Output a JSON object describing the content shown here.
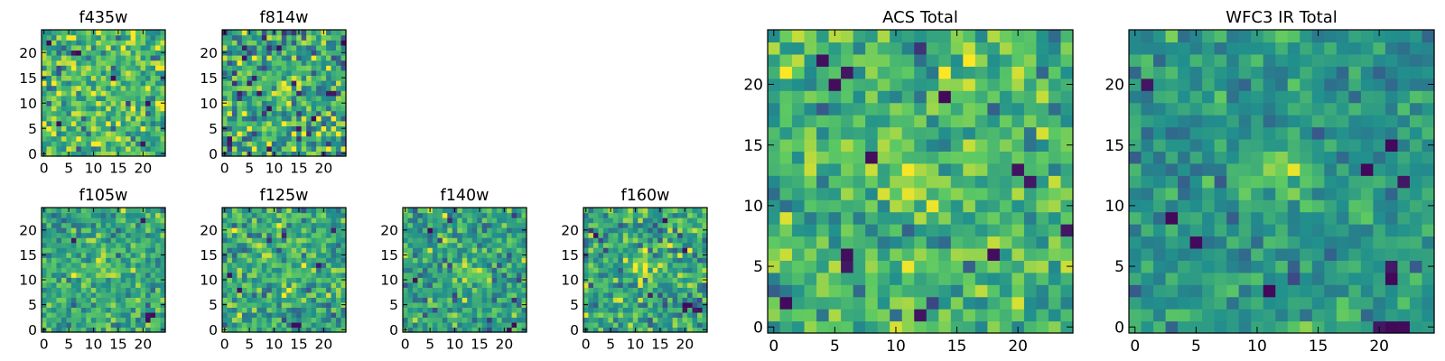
{
  "figure": {
    "colormap": "viridis",
    "colormap_stops": [
      "#440154",
      "#3b528b",
      "#21908d",
      "#5dc963",
      "#fde725"
    ]
  },
  "chart_data": [
    {
      "type": "heatmap",
      "title": "f435w",
      "size": 25,
      "peak": [
        12,
        12
      ],
      "peak_strength": 0.05,
      "noise_mean": 0.68,
      "noise_sd": 0.17,
      "dark_pixels": [
        [
          14,
          15
        ],
        [
          7,
          20
        ],
        [
          6,
          20
        ],
        [
          21,
          10
        ],
        [
          3,
          6
        ],
        [
          20,
          2
        ],
        [
          1,
          22
        ]
      ],
      "seed": 11,
      "xticks": [
        "0",
        "5",
        "10",
        "15",
        "20"
      ],
      "yticks": [
        "0",
        "5",
        "10",
        "15",
        "20"
      ],
      "xlim": [
        0,
        25
      ],
      "ylim": [
        0,
        25
      ]
    },
    {
      "type": "heatmap",
      "title": "f814w",
      "size": 25,
      "peak": [
        12,
        13
      ],
      "peak_strength": 0.25,
      "noise_mean": 0.6,
      "noise_sd": 0.2,
      "dark_pixels": [
        [
          15,
          5
        ],
        [
          9,
          9
        ],
        [
          21,
          12
        ],
        [
          4,
          19
        ],
        [
          11,
          21
        ],
        [
          1,
          3
        ],
        [
          18,
          7
        ],
        [
          22,
          12
        ]
      ],
      "seed": 23,
      "xticks": [
        "0",
        "5",
        "10",
        "15",
        "20"
      ],
      "yticks": [
        "0",
        "5",
        "10",
        "15",
        "20"
      ],
      "xlim": [
        0,
        25
      ],
      "ylim": [
        0,
        25
      ]
    },
    {
      "type": "heatmap",
      "title": "f105w",
      "size": 25,
      "peak": [
        12,
        12
      ],
      "peak_strength": 0.25,
      "noise_mean": 0.6,
      "noise_sd": 0.13,
      "dark_pixels": [
        [
          21,
          2
        ],
        [
          21,
          3
        ],
        [
          22,
          3
        ],
        [
          6,
          18
        ],
        [
          20,
          22
        ]
      ],
      "seed": 37,
      "xticks": [
        "0",
        "5",
        "10",
        "15",
        "20"
      ],
      "yticks": [
        "0",
        "5",
        "10",
        "15",
        "20"
      ],
      "xlim": [
        0,
        25
      ],
      "ylim": [
        0,
        25
      ]
    },
    {
      "type": "heatmap",
      "title": "f125w",
      "size": 25,
      "peak": [
        12,
        11
      ],
      "peak_strength": 0.2,
      "noise_mean": 0.6,
      "noise_sd": 0.15,
      "dark_pixels": [
        [
          14,
          1
        ],
        [
          15,
          1
        ],
        [
          1,
          11
        ],
        [
          19,
          13
        ],
        [
          3,
          8
        ]
      ],
      "seed": 41,
      "xticks": [
        "0",
        "5",
        "10",
        "15",
        "20"
      ],
      "yticks": [
        "0",
        "5",
        "10",
        "15",
        "20"
      ],
      "xlim": [
        0,
        25
      ],
      "ylim": [
        0,
        25
      ]
    },
    {
      "type": "heatmap",
      "title": "f140w",
      "size": 25,
      "peak": [
        13,
        12
      ],
      "peak_strength": 0.3,
      "noise_mean": 0.58,
      "noise_sd": 0.15,
      "dark_pixels": [
        [
          2,
          10
        ],
        [
          21,
          0
        ],
        [
          5,
          20
        ],
        [
          22,
          1
        ]
      ],
      "seed": 53,
      "xticks": [
        "0",
        "5",
        "10",
        "15",
        "20"
      ],
      "yticks": [
        "0",
        "5",
        "10",
        "15",
        "20"
      ],
      "xlim": [
        0,
        25
      ],
      "ylim": [
        0,
        25
      ]
    },
    {
      "type": "heatmap",
      "title": "f160w",
      "size": 25,
      "peak": [
        12,
        12
      ],
      "peak_strength": 0.28,
      "noise_mean": 0.58,
      "noise_sd": 0.15,
      "dark_pixels": [
        [
          20,
          5
        ],
        [
          21,
          5
        ],
        [
          22,
          4
        ],
        [
          23,
          4
        ],
        [
          20,
          4
        ],
        [
          2,
          19
        ],
        [
          16,
          22
        ]
      ],
      "seed": 67,
      "xticks": [
        "0",
        "5",
        "10",
        "15",
        "20"
      ],
      "yticks": [
        "0",
        "5",
        "10",
        "15",
        "20"
      ],
      "xlim": [
        0,
        25
      ],
      "ylim": [
        0,
        25
      ]
    },
    {
      "type": "heatmap",
      "title": "ACS Total",
      "size": 25,
      "peak": [
        11,
        12
      ],
      "peak_strength": 0.25,
      "noise_mean": 0.65,
      "noise_sd": 0.14,
      "dark_pixels": [
        [
          8,
          14
        ],
        [
          20,
          13
        ],
        [
          21,
          12
        ],
        [
          18,
          6
        ],
        [
          6,
          6
        ],
        [
          6,
          5
        ],
        [
          12,
          1
        ],
        [
          1,
          2
        ],
        [
          6,
          21
        ],
        [
          5,
          20
        ],
        [
          24,
          8
        ],
        [
          4,
          22
        ],
        [
          14,
          19
        ]
      ],
      "seed": 79,
      "xticks": [
        "0",
        "5",
        "10",
        "15",
        "20"
      ],
      "yticks": [
        "0",
        "5",
        "10",
        "15",
        "20"
      ],
      "xlim": [
        0,
        25
      ],
      "ylim": [
        0,
        25
      ]
    },
    {
      "type": "heatmap",
      "title": "WFC3 IR Total",
      "size": 25,
      "peak": [
        12,
        13
      ],
      "peak_strength": 0.35,
      "noise_mean": 0.52,
      "noise_sd": 0.1,
      "dark_pixels": [
        [
          3,
          9
        ],
        [
          5,
          7
        ],
        [
          19,
          13
        ],
        [
          21,
          5
        ],
        [
          21,
          4
        ],
        [
          11,
          3
        ],
        [
          20,
          0
        ],
        [
          21,
          0
        ],
        [
          22,
          0
        ],
        [
          1,
          20
        ],
        [
          22,
          12
        ],
        [
          21,
          15
        ]
      ],
      "seed": 97,
      "xticks": [
        "0",
        "5",
        "10",
        "15",
        "20"
      ],
      "yticks": [
        "0",
        "5",
        "10",
        "15",
        "20"
      ],
      "xlim": [
        0,
        25
      ],
      "ylim": [
        0,
        25
      ]
    }
  ]
}
